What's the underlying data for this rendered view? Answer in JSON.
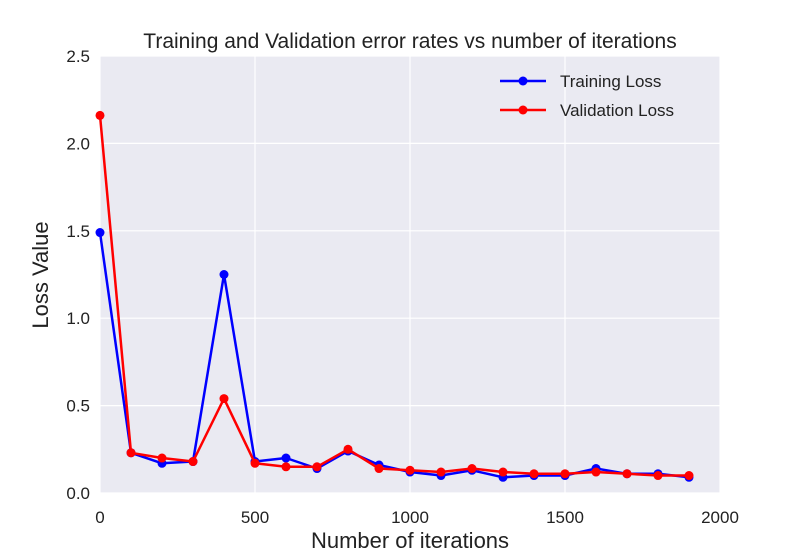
{
  "chart_data": {
    "type": "line",
    "title": "Training and Validation error rates vs number of iterations",
    "xlabel": "Number of iterations",
    "ylabel": "Loss Value",
    "xlim": [
      0,
      2000
    ],
    "ylim": [
      0,
      2.5
    ],
    "xticks": [
      0,
      500,
      1000,
      1500,
      2000
    ],
    "yticks": [
      0.0,
      0.5,
      1.0,
      1.5,
      2.0,
      2.5
    ],
    "xtick_labels": [
      "0",
      "500",
      "1000",
      "1500",
      "2000"
    ],
    "ytick_labels": [
      "0.0",
      "0.5",
      "1.0",
      "1.5",
      "2.0",
      "2.5"
    ],
    "grid": true,
    "background": "#eaeaf2",
    "legend_position": "top-right",
    "x": [
      0,
      100,
      200,
      300,
      400,
      500,
      600,
      700,
      800,
      900,
      1000,
      1100,
      1200,
      1300,
      1400,
      1500,
      1600,
      1700,
      1800,
      1900
    ],
    "series": [
      {
        "name": "Training Loss",
        "color": "#0000ff",
        "values": [
          1.49,
          0.23,
          0.17,
          0.18,
          1.25,
          0.18,
          0.2,
          0.14,
          0.24,
          0.16,
          0.12,
          0.1,
          0.13,
          0.09,
          0.1,
          0.1,
          0.14,
          0.11,
          0.11,
          0.09
        ]
      },
      {
        "name": "Validation Loss",
        "color": "#ff0000",
        "values": [
          2.16,
          0.23,
          0.2,
          0.18,
          0.54,
          0.17,
          0.15,
          0.15,
          0.25,
          0.14,
          0.13,
          0.12,
          0.14,
          0.12,
          0.11,
          0.11,
          0.12,
          0.11,
          0.1,
          0.1
        ]
      }
    ]
  }
}
